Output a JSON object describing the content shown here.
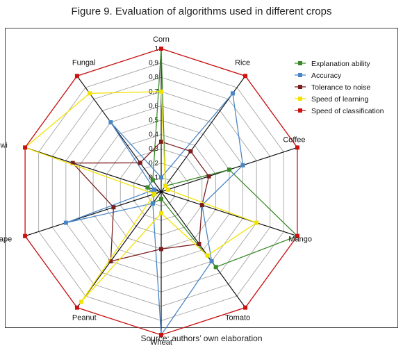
{
  "figure": {
    "title": "Figure 9. Evaluation of algorithms used in different crops",
    "source": "Source: authors’ own elaboration"
  },
  "chart_data": {
    "type": "radar",
    "title": "Figure 9. Evaluation of algorithms used in different crops",
    "categories": [
      "Corn",
      "Rice",
      "Coffee",
      "Mango",
      "Tomato",
      "Wheat",
      "Peanut",
      "Grape",
      "Kiwi",
      "Fungal"
    ],
    "ticks": [
      "0",
      "0,1",
      "0,2",
      "0,3",
      "0,4",
      "0,5",
      "0,6",
      "0,7",
      "0,8",
      "0,9",
      "1"
    ],
    "rlim": [
      0,
      1
    ],
    "grid": true,
    "legend_position": "top-right",
    "series": [
      {
        "name": "Explanation ability",
        "color": "#3a8a2a",
        "values": [
          1.0,
          0.05,
          0.5,
          1.0,
          0.65,
          0.05,
          0.1,
          0.05,
          0.1,
          0.1
        ]
      },
      {
        "name": "Accuracy",
        "color": "#4a86c5",
        "values": [
          0.1,
          0.85,
          0.6,
          0.3,
          0.6,
          1.0,
          0.1,
          0.7,
          0.05,
          0.6
        ]
      },
      {
        "name": "Tolerance to noise",
        "color": "#7a1e1e",
        "values": [
          0.35,
          0.35,
          0.35,
          0.3,
          0.45,
          0.4,
          0.6,
          0.35,
          0.65,
          0.25
        ]
      },
      {
        "name": "Speed of learning",
        "color": "#f2e200",
        "values": [
          0.7,
          0.05,
          0.05,
          0.7,
          0.55,
          0.15,
          0.95,
          0.05,
          1.0,
          0.85
        ]
      },
      {
        "name": "Speed of classification",
        "color": "#cc1111",
        "values": [
          1.0,
          1.0,
          1.0,
          1.0,
          1.0,
          1.0,
          1.0,
          1.0,
          1.0,
          1.0
        ]
      }
    ]
  }
}
